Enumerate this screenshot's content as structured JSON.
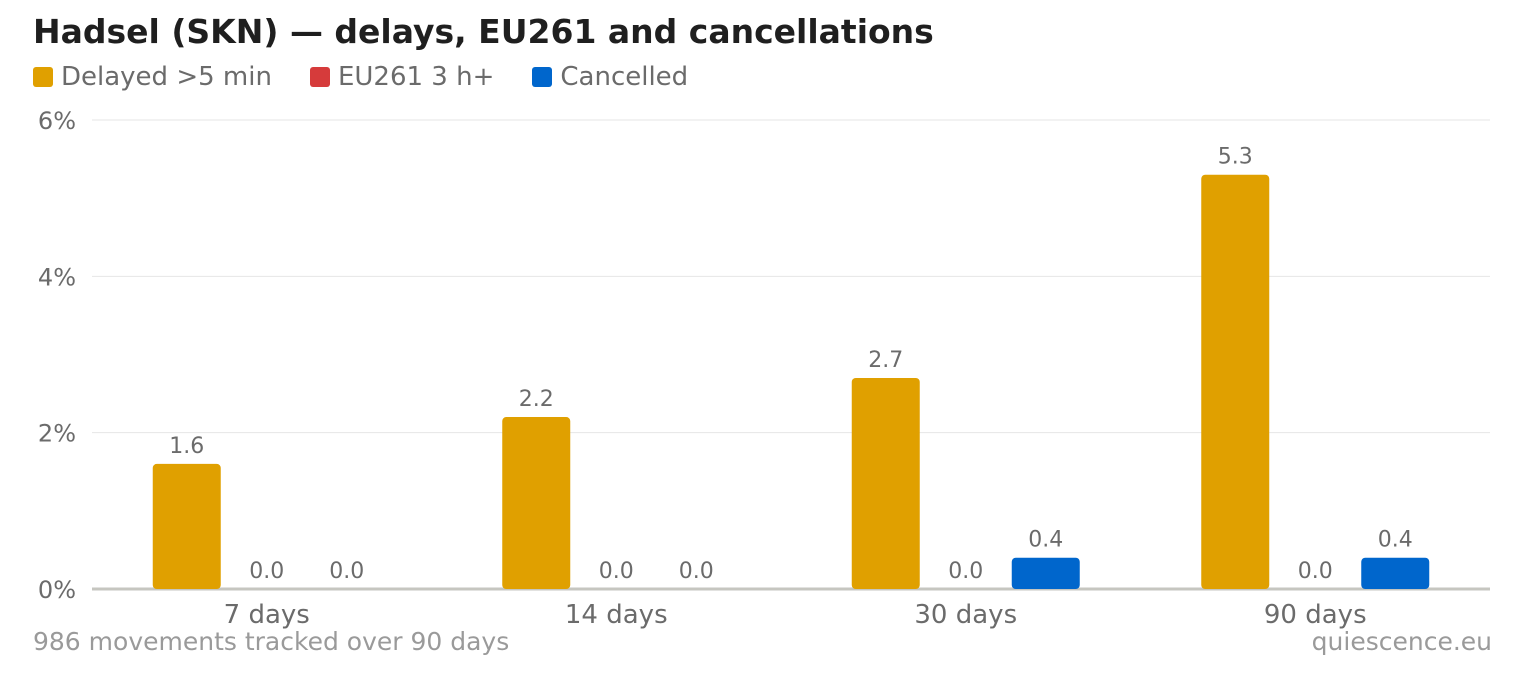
{
  "title": "Hadsel (SKN) — delays, EU261 and cancellations",
  "footer": {
    "note": "986 movements tracked over 90 days",
    "source": "quiescence.eu"
  },
  "chart_data": {
    "type": "bar",
    "title": "Hadsel (SKN) — delays, EU261 and cancellations",
    "categories": [
      "7 days",
      "14 days",
      "30 days",
      "90 days"
    ],
    "series": [
      {
        "name": "Delayed >5 min",
        "color": "#E0A000",
        "values": [
          1.6,
          2.2,
          2.7,
          5.3
        ]
      },
      {
        "name": "EU261 3 h+",
        "color": "#D63B3B",
        "values": [
          0.0,
          0.0,
          0.0,
          0.0
        ]
      },
      {
        "name": "Cancelled",
        "color": "#0066CC",
        "values": [
          0.0,
          0.0,
          0.4,
          0.4
        ]
      }
    ],
    "y_ticks": [
      "0%",
      "2%",
      "4%",
      "6%"
    ],
    "ylim": [
      0,
      6
    ],
    "grid": true,
    "legend_position": "top-left"
  }
}
